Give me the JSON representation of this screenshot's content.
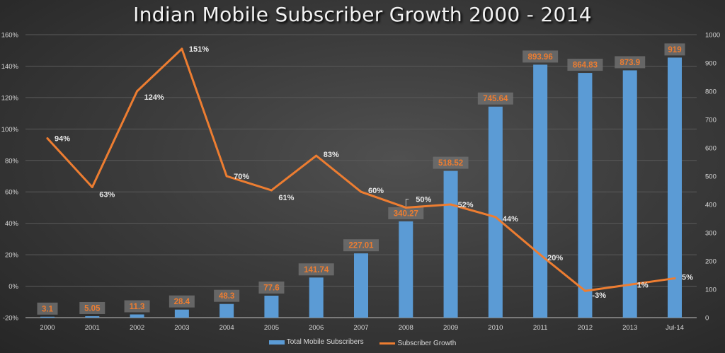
{
  "chart_data": {
    "type": "bar+line",
    "title": "Indian Mobile Subscriber Growth 2000 - 2014",
    "categories": [
      "2000",
      "2001",
      "2002",
      "2003",
      "2004",
      "2005",
      "2006",
      "2007",
      "2008",
      "2009",
      "2010",
      "2011",
      "2012",
      "2013",
      "Jul-14"
    ],
    "series": [
      {
        "name": "Total Mobile Subscribers",
        "type": "bar",
        "axis": "right",
        "values": [
          3.1,
          5.05,
          11.3,
          28.4,
          48.3,
          77.6,
          141.74,
          227.01,
          340.27,
          518.52,
          745.64,
          893.96,
          864.83,
          873.9,
          919
        ],
        "labels": [
          "3.1",
          "5.05",
          "11.3",
          "28.4",
          "48.3",
          "77.6",
          "141.74",
          "227.01",
          "340.27",
          "518.52",
          "745.64",
          "893.96",
          "864.83",
          "873.9",
          "919"
        ],
        "color": "#5b9bd5"
      },
      {
        "name": "Subscriber Growth",
        "type": "line",
        "axis": "left",
        "values": [
          94,
          63,
          124,
          151,
          70,
          61,
          83,
          60,
          50,
          52,
          44,
          20,
          -3,
          1,
          5
        ],
        "labels": [
          "94%",
          "63%",
          "124%",
          "151%",
          "70%",
          "61%",
          "83%",
          "60%",
          "50%",
          "52%",
          "44%",
          "20%",
          "-3%",
          "1%",
          "5%"
        ],
        "color": "#ed7d31"
      }
    ],
    "left_axis": {
      "min": -20,
      "max": 160,
      "step": 20,
      "ticks": [
        "160%",
        "140%",
        "120%",
        "100%",
        "80%",
        "60%",
        "40%",
        "20%",
        "0%",
        "-20%"
      ]
    },
    "right_axis": {
      "min": 0,
      "max": 1000,
      "step": 100,
      "ticks": [
        "1000",
        "900",
        "800",
        "700",
        "600",
        "500",
        "400",
        "300",
        "200",
        "100",
        "0"
      ]
    },
    "grid": true,
    "legend": {
      "position": "bottom",
      "entries": [
        "Total Mobile Subscribers",
        "Subscriber Growth"
      ]
    },
    "colors": {
      "bar_label_text": "#ed7d31",
      "bar_label_bg": "#6e6e6e",
      "line_label_text": "#e8e8e8",
      "axis_text": "#d9d9d9"
    }
  }
}
